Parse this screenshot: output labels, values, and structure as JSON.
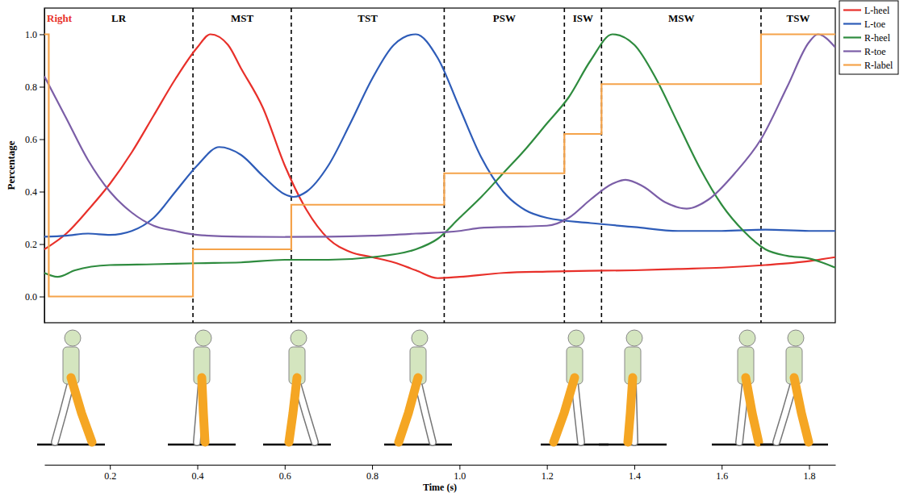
{
  "chart_data": {
    "type": "line",
    "annotation": "Right",
    "xlabel": "Time (s)",
    "ylabel": "Percentage",
    "xlim": [
      0.05,
      1.86
    ],
    "ylim": [
      -0.1,
      1.1
    ],
    "xticks": [
      0.2,
      0.4,
      0.6,
      0.8,
      {
        "value": 1,
        "label": "1.0"
      },
      1.2,
      1.4,
      1.6,
      1.8
    ],
    "yticks": [
      {
        "value": 0,
        "label": "0.0"
      },
      {
        "value": 0.2,
        "label": "0.2"
      },
      {
        "value": 0.4,
        "label": "0.4"
      },
      {
        "value": 0.6,
        "label": "0.6"
      },
      {
        "value": 0.8,
        "label": "0.8"
      },
      {
        "value": 1,
        "label": "1.0"
      }
    ],
    "grid": false,
    "legend": "right",
    "phase_boundaries": [
      0.39,
      0.615,
      0.965,
      1.24,
      1.325,
      1.69
    ],
    "phase_labels": [
      "LR",
      "MST",
      "TST",
      "PSW",
      "ISW",
      "MSW",
      "TSW"
    ],
    "series": [
      {
        "name": "L-heel",
        "color": "#e8302a",
        "line_style": "solid",
        "x": [
          0.05,
          0.1,
          0.15,
          0.2,
          0.25,
          0.3,
          0.35,
          0.4,
          0.43,
          0.47,
          0.5,
          0.55,
          0.6,
          0.65,
          0.7,
          0.75,
          0.8,
          0.85,
          0.9,
          0.95,
          1.0,
          1.1,
          1.2,
          1.3,
          1.4,
          1.5,
          1.6,
          1.7,
          1.8,
          1.86
        ],
        "values": [
          0.18,
          0.24,
          0.33,
          0.43,
          0.55,
          0.69,
          0.83,
          0.95,
          1.0,
          0.96,
          0.87,
          0.72,
          0.5,
          0.33,
          0.22,
          0.17,
          0.15,
          0.13,
          0.1,
          0.07,
          0.075,
          0.09,
          0.095,
          0.098,
          0.1,
          0.105,
          0.11,
          0.12,
          0.135,
          0.15
        ]
      },
      {
        "name": "L-toe",
        "color": "#2e5cb8",
        "line_style": "solid",
        "x": [
          0.05,
          0.1,
          0.15,
          0.2,
          0.25,
          0.3,
          0.35,
          0.4,
          0.45,
          0.5,
          0.55,
          0.6,
          0.62,
          0.65,
          0.7,
          0.75,
          0.8,
          0.85,
          0.9,
          0.95,
          1.0,
          1.05,
          1.1,
          1.15,
          1.2,
          1.3,
          1.4,
          1.5,
          1.6,
          1.7,
          1.8,
          1.86
        ],
        "values": [
          0.228,
          0.232,
          0.24,
          0.235,
          0.25,
          0.3,
          0.4,
          0.5,
          0.57,
          0.54,
          0.46,
          0.39,
          0.38,
          0.4,
          0.5,
          0.66,
          0.83,
          0.96,
          1.0,
          0.91,
          0.72,
          0.53,
          0.4,
          0.33,
          0.3,
          0.28,
          0.265,
          0.25,
          0.25,
          0.255,
          0.25,
          0.25
        ]
      },
      {
        "name": "R-heel",
        "color": "#2e8b3e",
        "line_style": "solid",
        "x": [
          0.05,
          0.08,
          0.12,
          0.2,
          0.3,
          0.4,
          0.5,
          0.6,
          0.7,
          0.8,
          0.9,
          0.95,
          1.0,
          1.05,
          1.1,
          1.15,
          1.2,
          1.25,
          1.3,
          1.35,
          1.4,
          1.45,
          1.5,
          1.55,
          1.6,
          1.65,
          1.7,
          1.75,
          1.8,
          1.86
        ],
        "values": [
          0.09,
          0.075,
          0.1,
          0.12,
          0.123,
          0.127,
          0.13,
          0.14,
          0.14,
          0.15,
          0.18,
          0.22,
          0.3,
          0.38,
          0.47,
          0.56,
          0.66,
          0.76,
          0.9,
          1.0,
          0.96,
          0.83,
          0.66,
          0.49,
          0.35,
          0.25,
          0.18,
          0.155,
          0.145,
          0.11
        ]
      },
      {
        "name": "R-toe",
        "color": "#7b5ea7",
        "line_style": "solid",
        "x": [
          0.05,
          0.1,
          0.15,
          0.2,
          0.25,
          0.3,
          0.35,
          0.4,
          0.5,
          0.6,
          0.7,
          0.8,
          0.9,
          1.0,
          1.05,
          1.1,
          1.2,
          1.25,
          1.3,
          1.35,
          1.38,
          1.42,
          1.47,
          1.52,
          1.57,
          1.63,
          1.69,
          1.75,
          1.8,
          1.82,
          1.86
        ],
        "values": [
          0.84,
          0.68,
          0.52,
          0.4,
          0.32,
          0.27,
          0.25,
          0.235,
          0.228,
          0.227,
          0.228,
          0.232,
          0.24,
          0.25,
          0.262,
          0.265,
          0.27,
          0.3,
          0.37,
          0.43,
          0.445,
          0.42,
          0.36,
          0.335,
          0.37,
          0.47,
          0.6,
          0.8,
          0.97,
          1.0,
          0.95
        ]
      },
      {
        "name": "R-label",
        "color": "#f5a34a",
        "line_style": "step",
        "x": [
          0.05,
          0.06,
          0.39,
          0.615,
          0.965,
          1.24,
          1.325,
          1.69,
          1.86
        ],
        "values": [
          1.0,
          0,
          0.18,
          0.35,
          0.47,
          0.62,
          0.81,
          1.0,
          1.0
        ]
      }
    ]
  }
}
